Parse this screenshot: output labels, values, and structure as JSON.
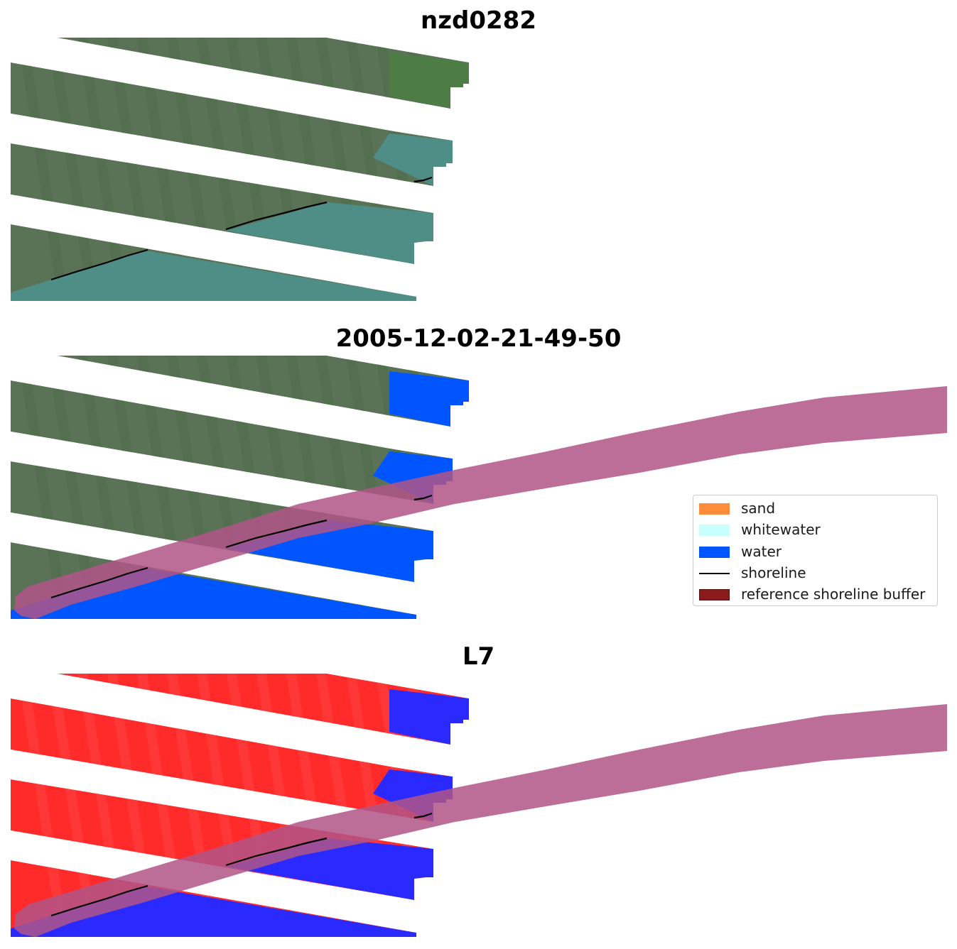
{
  "panels": [
    {
      "title": "nzd0282"
    },
    {
      "title": "2005-12-02-21-49-50"
    },
    {
      "title": "L7"
    }
  ],
  "legend": {
    "items": [
      {
        "label": "sand",
        "color": "#ff8c3a",
        "kind": "patch"
      },
      {
        "label": "whitewater",
        "color": "#c8fffc",
        "kind": "patch"
      },
      {
        "label": "water",
        "color": "#0055ff",
        "kind": "patch"
      },
      {
        "label": "shoreline",
        "color": "#000000",
        "kind": "line"
      },
      {
        "label": "reference shoreline buffer",
        "color": "#8b1a1a",
        "kind": "patch"
      }
    ]
  },
  "colors": {
    "land_rgb": "#5a7356",
    "sea_rgb": "#4f8d87",
    "water_class": "#0055ff",
    "buffer_overlay": "#b05587",
    "land_mndwi": "#ff2a2a",
    "water_mndwi": "#2a2aff",
    "shoreline": "#000000"
  }
}
